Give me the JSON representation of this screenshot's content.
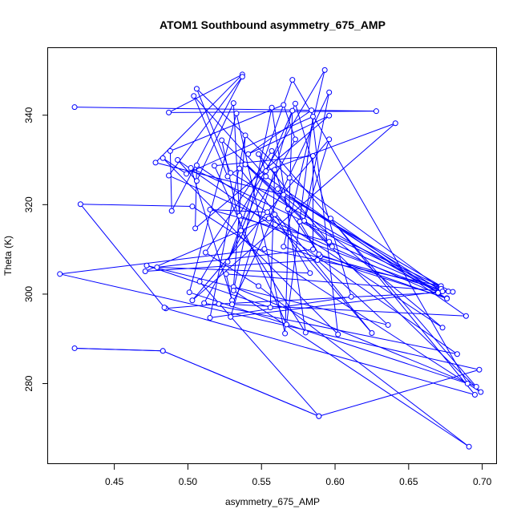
{
  "chart_data": {
    "type": "line",
    "title": "ATOM1 Southbound asymmetry_675_AMP",
    "xlabel": "asymmetry_675_AMP",
    "ylabel": "Theta (K)",
    "xlim": [
      0.405,
      0.71
    ],
    "ylim": [
      262,
      355
    ],
    "xticks": [
      0.45,
      0.5,
      0.55,
      0.6,
      0.65,
      0.7
    ],
    "xtick_labels": [
      "0.45",
      "0.50",
      "0.55",
      "0.60",
      "0.65",
      "0.70"
    ],
    "yticks": [
      280,
      300,
      320,
      340
    ],
    "ytick_labels": [
      "280",
      "300",
      "320",
      "340"
    ],
    "marker": "open-circle",
    "grid": false,
    "series": [
      {
        "color": "#0000ff",
        "points": [
          [
            0.423,
            341.8
          ],
          [
            0.628,
            340.9
          ],
          [
            0.487,
            340.6
          ],
          [
            0.537,
            349.1
          ],
          [
            0.478,
            329.4
          ],
          [
            0.565,
            322.2
          ],
          [
            0.672,
            301.8
          ],
          [
            0.552,
            310.1
          ],
          [
            0.413,
            304.5
          ],
          [
            0.698,
            283.1
          ],
          [
            0.589,
            272.7
          ],
          [
            0.483,
            287.3
          ],
          [
            0.423,
            287.9
          ],
          [
            0.483,
            287.3
          ],
          [
            0.589,
            272.7
          ],
          [
            0.508,
            302.8
          ],
          [
            0.593,
            350.1
          ],
          [
            0.565,
            310.6
          ],
          [
            0.676,
            299.1
          ],
          [
            0.487,
            326.5
          ],
          [
            0.537,
            348.6
          ],
          [
            0.489,
            318.6
          ],
          [
            0.488,
            332.0
          ],
          [
            0.565,
            342.3
          ],
          [
            0.573,
            334.6
          ],
          [
            0.511,
            298.0
          ],
          [
            0.683,
            286.6
          ],
          [
            0.493,
            330.0
          ],
          [
            0.506,
            325.3
          ],
          [
            0.531,
            342.7
          ],
          [
            0.535,
            317.5
          ],
          [
            0.672,
            300.6
          ],
          [
            0.529,
            294.9
          ],
          [
            0.571,
            341.0
          ],
          [
            0.566,
            291.2
          ],
          [
            0.533,
            340.4
          ],
          [
            0.501,
            300.4
          ],
          [
            0.69,
            280.0
          ],
          [
            0.571,
            347.9
          ],
          [
            0.527,
            307.2
          ],
          [
            0.573,
            342.6
          ],
          [
            0.611,
            299.4
          ],
          [
            0.515,
            294.7
          ],
          [
            0.539,
            335.5
          ],
          [
            0.531,
            301.6
          ],
          [
            0.696,
            279.3
          ],
          [
            0.557,
            332.0
          ],
          [
            0.512,
            309.3
          ],
          [
            0.548,
            301.8
          ],
          [
            0.691,
            265.9
          ],
          [
            0.531,
            300.8
          ],
          [
            0.557,
            341.7
          ],
          [
            0.58,
            291.4
          ],
          [
            0.536,
            314.2
          ],
          [
            0.523,
            334.4
          ],
          [
            0.598,
            310.6
          ],
          [
            0.548,
            331.3
          ],
          [
            0.553,
            327.5
          ],
          [
            0.641,
            338.2
          ],
          [
            0.503,
            298.6
          ],
          [
            0.596,
            334.6
          ],
          [
            0.579,
            316.4
          ],
          [
            0.596,
            345.1
          ],
          [
            0.555,
            316.9
          ],
          [
            0.471,
            305.1
          ],
          [
            0.588,
            307.6
          ],
          [
            0.636,
            293.1
          ],
          [
            0.472,
            306.4
          ],
          [
            0.556,
            297.0
          ],
          [
            0.559,
            327.8
          ],
          [
            0.568,
            319.0
          ],
          [
            0.59,
            308.5
          ],
          [
            0.677,
            300.6
          ],
          [
            0.526,
            304.5
          ],
          [
            0.53,
            298.6
          ],
          [
            0.502,
            328.2
          ],
          [
            0.68,
            300.5
          ],
          [
            0.521,
            297.8
          ],
          [
            0.485,
            296.8
          ],
          [
            0.695,
            277.5
          ],
          [
            0.597,
            316.9
          ],
          [
            0.67,
            300.3
          ],
          [
            0.529,
            327.1
          ],
          [
            0.506,
            345.9
          ],
          [
            0.569,
            326.0
          ],
          [
            0.672,
            301.2
          ],
          [
            0.576,
            316.2
          ],
          [
            0.589,
            308.9
          ],
          [
            0.676,
            299.0
          ],
          [
            0.561,
            323.5
          ],
          [
            0.673,
            300.6
          ],
          [
            0.596,
            311.7
          ],
          [
            0.515,
            318.9
          ],
          [
            0.554,
            318.3
          ],
          [
            0.625,
            291.3
          ],
          [
            0.535,
            328.1
          ],
          [
            0.527,
            326.3
          ],
          [
            0.504,
            344.3
          ],
          [
            0.553,
            326.3
          ],
          [
            0.689,
            295.1
          ],
          [
            0.53,
            297.7
          ],
          [
            0.559,
            317.8
          ],
          [
            0.583,
            304.7
          ],
          [
            0.479,
            306.0
          ],
          [
            0.585,
            310.0
          ],
          [
            0.585,
            330.9
          ],
          [
            0.518,
            328.7
          ],
          [
            0.567,
            293.2
          ],
          [
            0.585,
            339.7
          ],
          [
            0.499,
            326.9
          ],
          [
            0.483,
            330.4
          ],
          [
            0.602,
            291.0
          ],
          [
            0.584,
            341.1
          ],
          [
            0.541,
            331.3
          ],
          [
            0.596,
            339.9
          ],
          [
            0.505,
            314.7
          ],
          [
            0.506,
            328.8
          ],
          [
            0.673,
            292.5
          ],
          [
            0.539,
            329.0
          ],
          [
            0.699,
            278.1
          ],
          [
            0.503,
            319.6
          ],
          [
            0.427,
            320.1
          ],
          [
            0.484,
            297.0
          ]
        ]
      }
    ]
  }
}
